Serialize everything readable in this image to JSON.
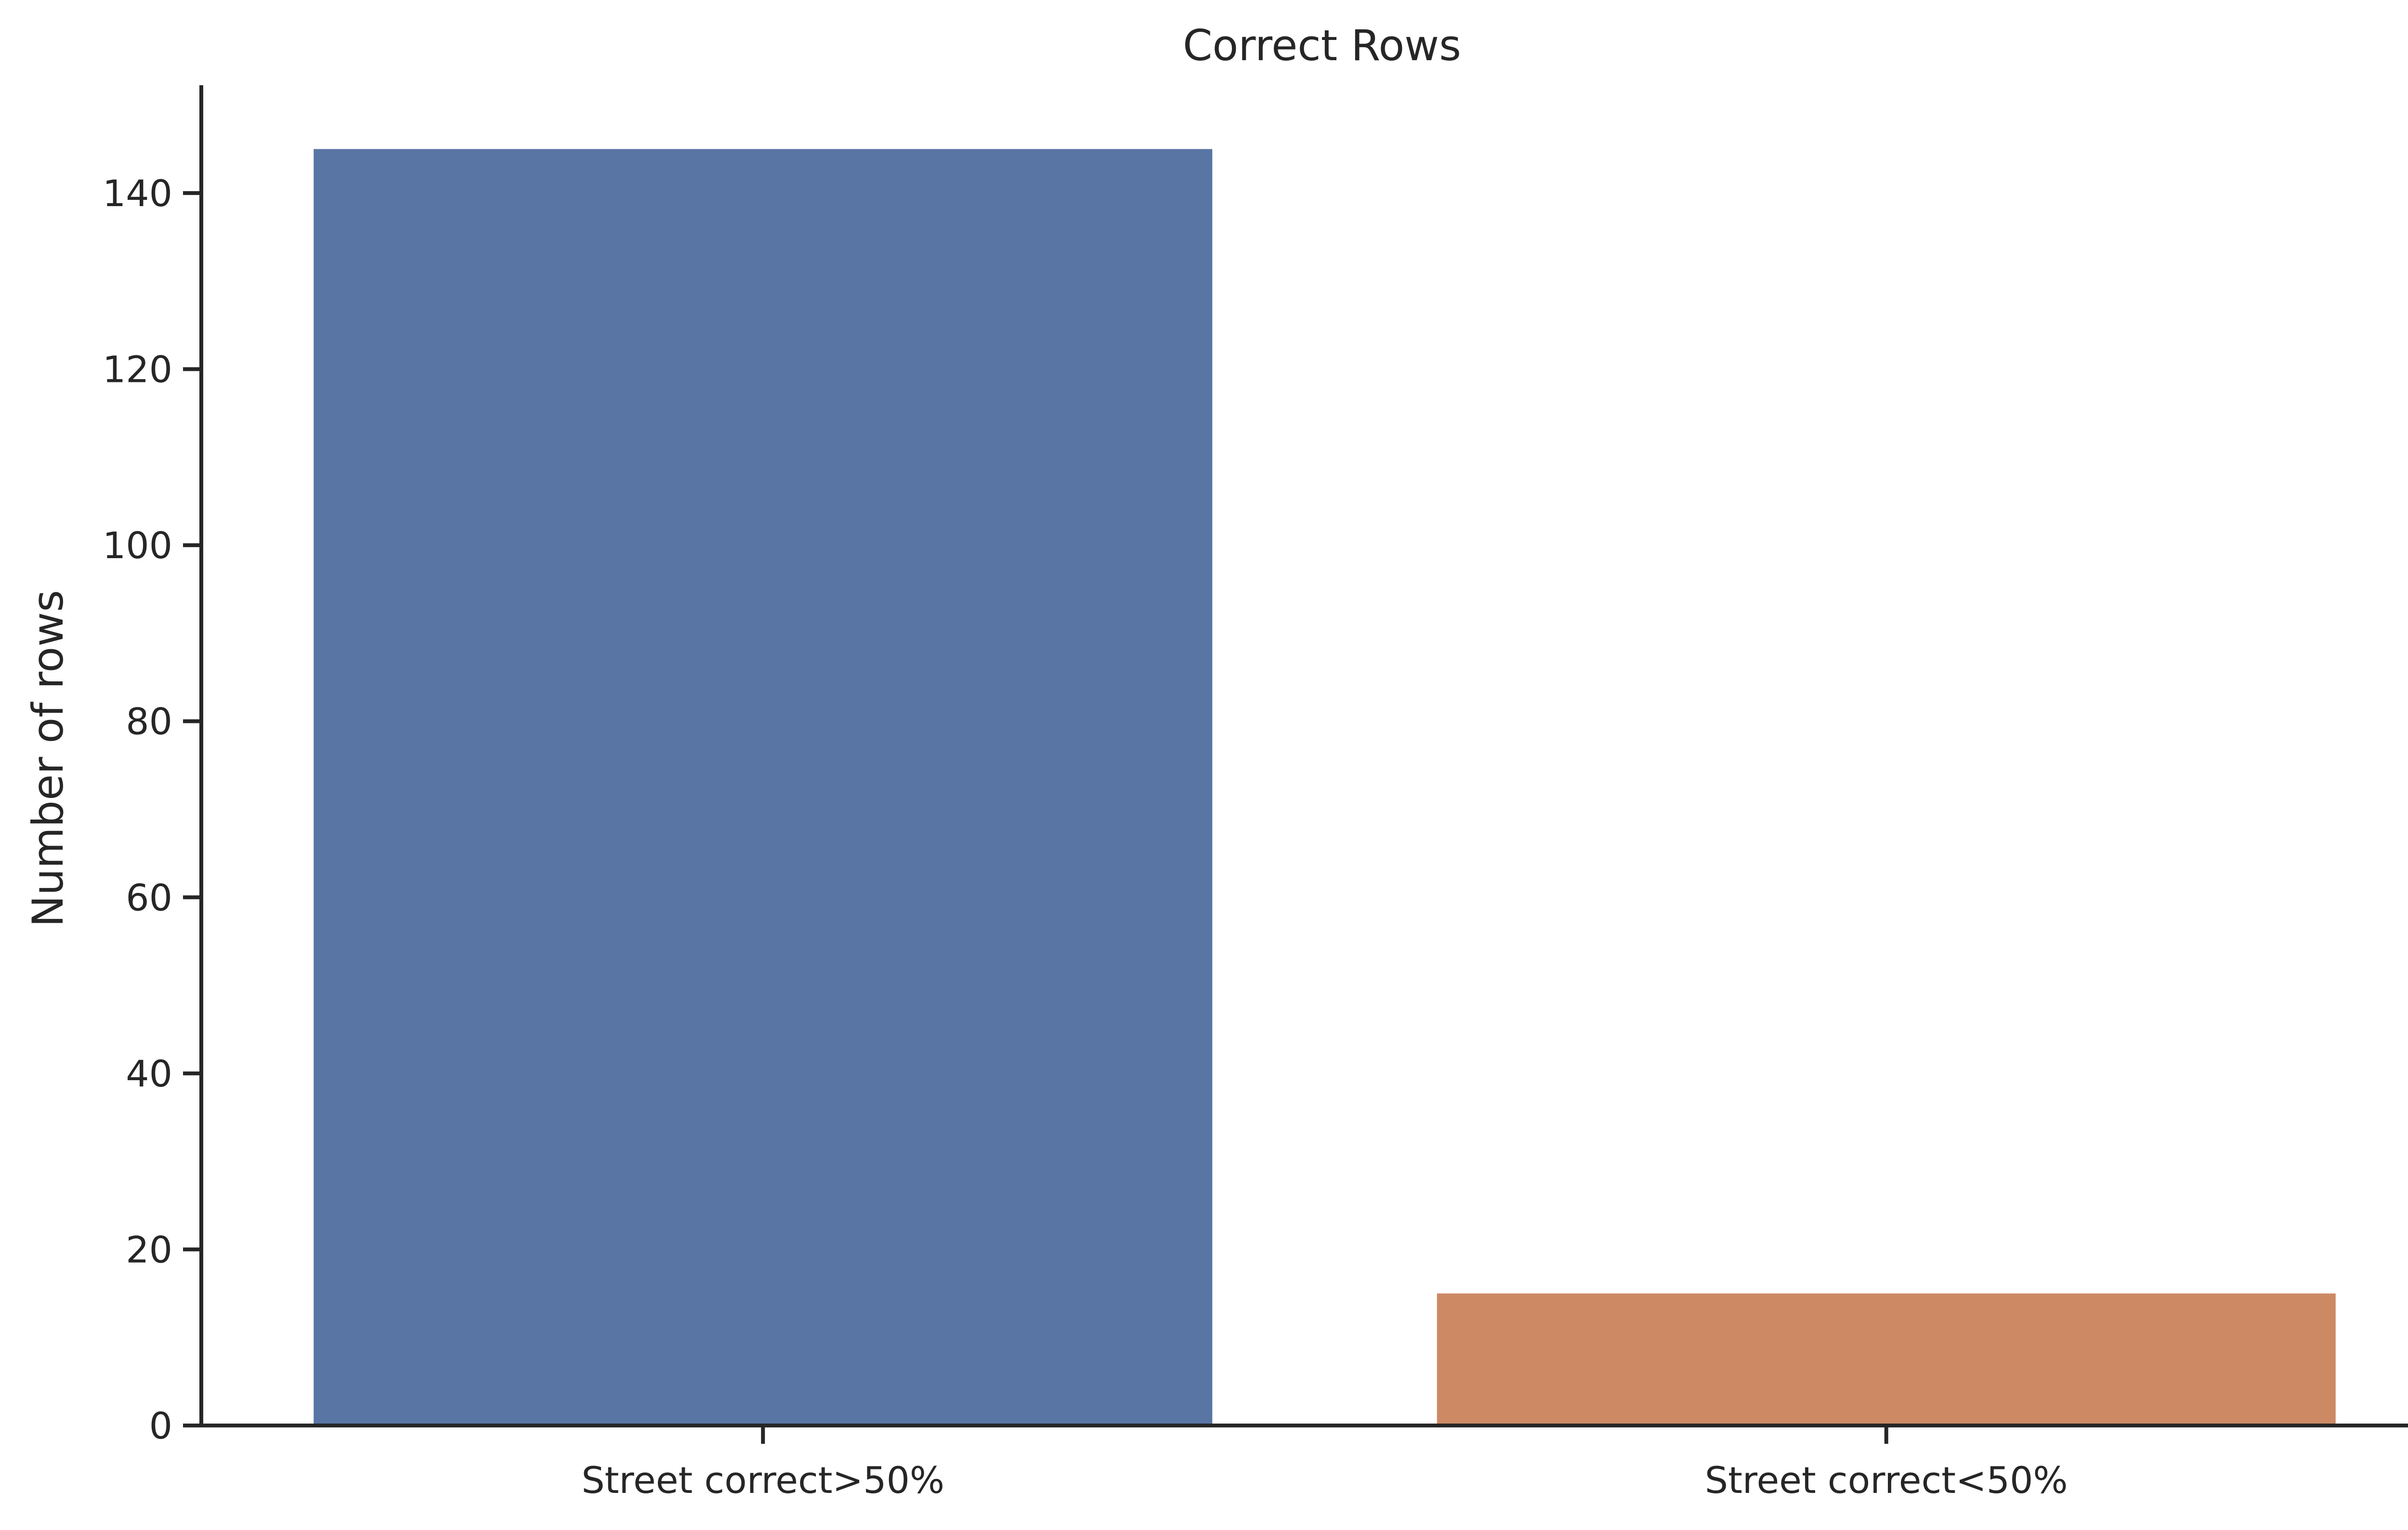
{
  "chart_data": {
    "type": "bar",
    "title": "Correct Rows",
    "xlabel": "",
    "ylabel": "Number of rows",
    "categories": [
      "Street correct>50%",
      "Street correct<50%"
    ],
    "values": [
      145,
      15
    ],
    "colors": [
      "#5975a4",
      "#cc8963"
    ],
    "ylim": [
      0,
      152.25
    ],
    "yticks": [
      0,
      20,
      40,
      60,
      80,
      100,
      120,
      140
    ],
    "grid": false,
    "legend": "none"
  }
}
